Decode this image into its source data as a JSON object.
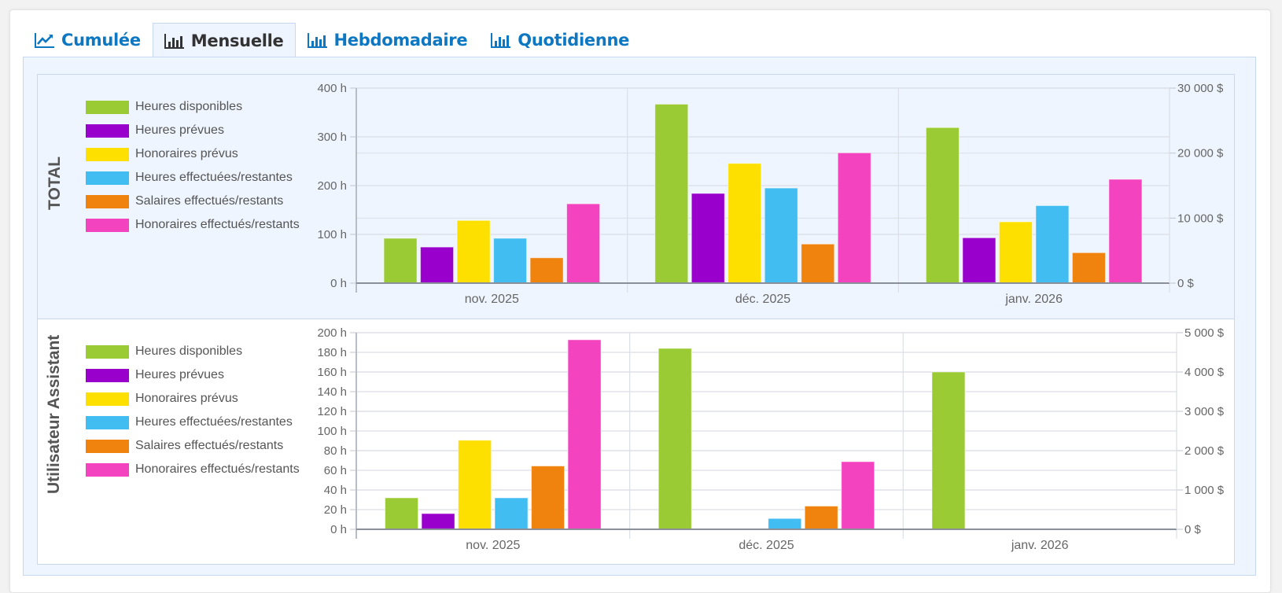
{
  "tabs": [
    {
      "label": "Cumulée",
      "icon": "line-chart-icon",
      "active": false
    },
    {
      "label": "Mensuelle",
      "icon": "bar-chart-icon",
      "active": true
    },
    {
      "label": "Hebdomadaire",
      "icon": "bar-chart-icon",
      "active": false
    },
    {
      "label": "Quotidienne",
      "icon": "bar-chart-icon",
      "active": false
    }
  ],
  "colors": {
    "link": "#0d77c2",
    "panel_bg": "#eef5fe",
    "panel_border": "#c7d8f2"
  },
  "legend": [
    {
      "label": "Heures disponibles",
      "color": "#9ACA34",
      "axis": "h"
    },
    {
      "label": "Heures prévues",
      "color": "#9A00CC",
      "axis": "h"
    },
    {
      "label": "Honoraires prévus",
      "color": "#FDE000",
      "axis": "$"
    },
    {
      "label": "Heures effectuées/restantes",
      "color": "#42BDF2",
      "axis": "h"
    },
    {
      "label": "Salaires effectués/restants",
      "color": "#F0820E",
      "axis": "$"
    },
    {
      "label": "Honoraires effectués/restants",
      "color": "#F443BE",
      "axis": "$"
    }
  ],
  "chart_data": [
    {
      "type": "bar",
      "title": "TOTAL",
      "categories": [
        "nov. 2025",
        "déc. 2025",
        "janv. 2026"
      ],
      "y_left": {
        "unit": "h",
        "range": [
          0,
          400
        ],
        "ticks": [
          "0 h",
          "100 h",
          "200 h",
          "300 h",
          "400 h"
        ]
      },
      "y_right": {
        "unit": "$",
        "range": [
          0,
          30000
        ],
        "ticks": [
          "0 $",
          "10 000 $",
          "20 000 $",
          "30 000 $"
        ]
      },
      "legend_position": "left",
      "grid": true,
      "series": [
        {
          "name": "Heures disponibles",
          "axis": "left",
          "values": [
            92,
            367,
            319
          ]
        },
        {
          "name": "Heures prévues",
          "axis": "left",
          "values": [
            74,
            184,
            93
          ]
        },
        {
          "name": "Honoraires prévus",
          "axis": "right",
          "values": [
            9640,
            18420,
            9430
          ]
        },
        {
          "name": "Heures effectuées/restantes",
          "axis": "left",
          "values": [
            92,
            195,
            159
          ]
        },
        {
          "name": "Salaires effectués/restants",
          "axis": "right",
          "values": [
            3900,
            6010,
            4680
          ]
        },
        {
          "name": "Honoraires effectués/restants",
          "axis": "right",
          "values": [
            12200,
            20040,
            15970
          ]
        }
      ]
    },
    {
      "type": "bar",
      "title": "Utilisateur Assistant",
      "categories": [
        "nov. 2025",
        "déc. 2025",
        "janv. 2026"
      ],
      "y_left": {
        "unit": "h",
        "range": [
          0,
          200
        ],
        "ticks": [
          "0 h",
          "20 h",
          "40 h",
          "60 h",
          "80 h",
          "100 h",
          "120 h",
          "140 h",
          "160 h",
          "180 h",
          "200 h"
        ]
      },
      "y_right": {
        "unit": "$",
        "range": [
          0,
          5000
        ],
        "ticks": [
          "0 $",
          "1 000 $",
          "2 000 $",
          "3 000 $",
          "4 000 $",
          "5 000 $"
        ]
      },
      "legend_position": "left",
      "grid": true,
      "series": [
        {
          "name": "Heures disponibles",
          "axis": "left",
          "values": [
            32,
            184,
            160
          ]
        },
        {
          "name": "Heures prévues",
          "axis": "left",
          "values": [
            16,
            0,
            0
          ]
        },
        {
          "name": "Honoraires prévus",
          "axis": "right",
          "values": [
            2265,
            0,
            0
          ]
        },
        {
          "name": "Heures effectuées/restantes",
          "axis": "left",
          "values": [
            32,
            11,
            0
          ]
        },
        {
          "name": "Salaires effectués/restants",
          "axis": "right",
          "values": [
            1610,
            590,
            0
          ]
        },
        {
          "name": "Honoraires effectués/restants",
          "axis": "right",
          "values": [
            4820,
            1720,
            0
          ]
        }
      ]
    }
  ]
}
